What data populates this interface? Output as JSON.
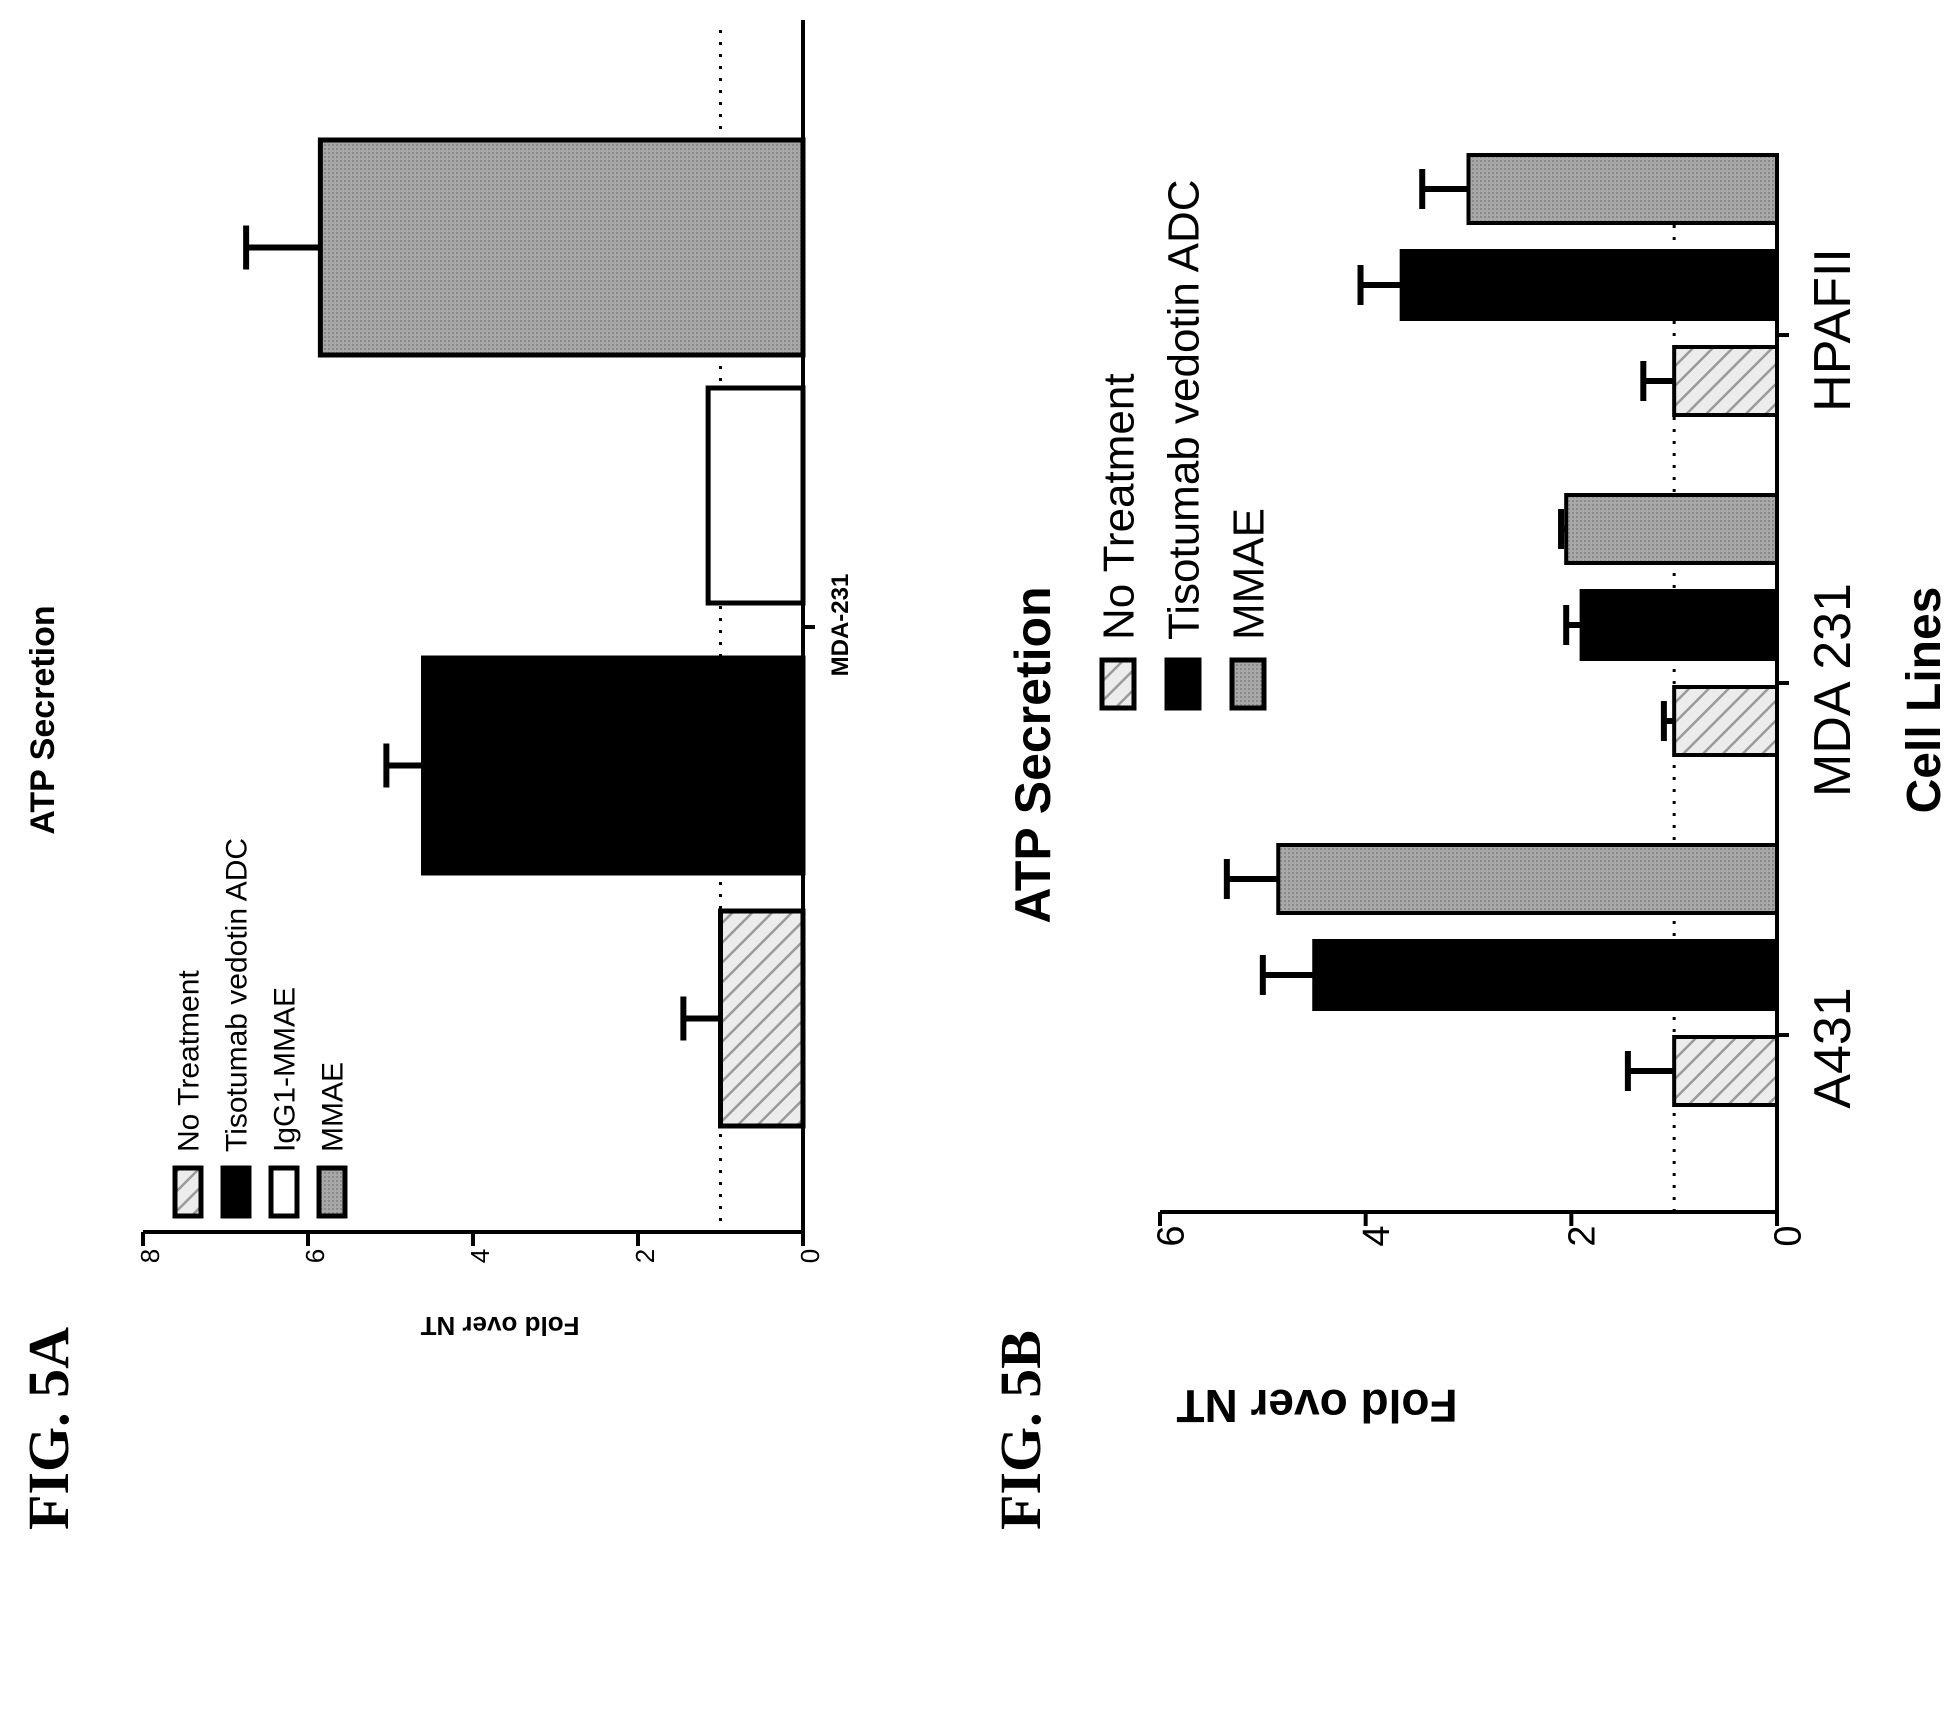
{
  "figure_labels": {
    "a": "FIG. 5A",
    "b": "FIG. 5B"
  },
  "colors": {
    "no_treatment": "#e3e3e3",
    "tisotumab": "#000000",
    "igg1": "#ffffff",
    "mmae": "#9a9a9a"
  },
  "chart_data": [
    {
      "type": "bar",
      "orientation": "rotated 90° clockwise",
      "title": "ATP Secretion",
      "xlabel": "",
      "ylabel": "Fold over NT",
      "ylim": [
        0,
        8
      ],
      "yticks": [
        "0",
        "2",
        "4",
        "6",
        "8"
      ],
      "categories": [
        "MDA-231"
      ],
      "reference_line": 1,
      "legend_position": "top-left",
      "series": [
        {
          "name": "No Treatment",
          "pattern": "hatched",
          "values": [
            1.0
          ],
          "errors": [
            0.45
          ]
        },
        {
          "name": "Tisotumab vedotin ADC",
          "pattern": "solid-black",
          "values": [
            4.6
          ],
          "errors": [
            0.45
          ]
        },
        {
          "name": "IgG1-MMAE",
          "pattern": "white",
          "values": [
            1.15
          ],
          "errors": [
            0.3
          ]
        },
        {
          "name": "MMAE",
          "pattern": "gray",
          "values": [
            5.85
          ],
          "errors": [
            0.9
          ]
        }
      ]
    },
    {
      "type": "bar",
      "orientation": "rotated 90° clockwise",
      "title": "ATP Secretion",
      "xlabel": "Cell Lines",
      "ylabel": "Fold over NT",
      "ylim": [
        0,
        6
      ],
      "yticks": [
        "0",
        "2",
        "4",
        "6"
      ],
      "categories": [
        "A431",
        "MDA 231",
        "HPAFII"
      ],
      "reference_line": 1,
      "legend_position": "top",
      "series": [
        {
          "name": "No Treatment",
          "pattern": "hatched",
          "values": [
            1.0,
            1.0,
            1.0
          ],
          "errors": [
            0.45,
            0.1,
            0.3
          ]
        },
        {
          "name": "Tisotumab vedotin ADC",
          "pattern": "solid-black",
          "values": [
            4.5,
            1.9,
            3.65
          ],
          "errors": [
            0.5,
            0.15,
            0.4
          ]
        },
        {
          "name": "MMAE",
          "pattern": "gray",
          "values": [
            4.85,
            2.05,
            3.0
          ],
          "errors": [
            0.5,
            0.05,
            0.45
          ]
        }
      ]
    }
  ]
}
